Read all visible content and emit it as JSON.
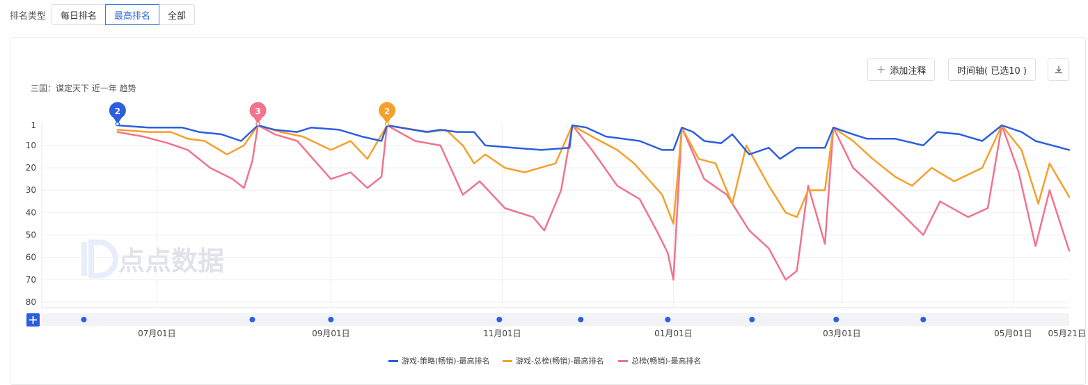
{
  "toolbar": {
    "label": "排名类型",
    "options": [
      "每日排名",
      "最高排名",
      "全部"
    ],
    "active": "最高排名"
  },
  "actions": {
    "add_note": "添加注释",
    "timeline": "时间轴( 已选10 )"
  },
  "watermark": "点点数据",
  "colors": {
    "blue": "#2b5fe0",
    "orange": "#f5a02a",
    "pink": "#f2738b"
  },
  "chart_data": {
    "type": "line",
    "title": "三国：谋定天下 近一年 趋势",
    "ylim": [
      1,
      80
    ],
    "y_inverted": true,
    "yticks": [
      1,
      10,
      20,
      30,
      40,
      50,
      60,
      70,
      80
    ],
    "xlim": [
      "2023-05-21",
      "2024-05-21"
    ],
    "xticks": [
      {
        "date": "2023-07-01",
        "label": "07月01日"
      },
      {
        "date": "2023-09-01",
        "label": "09月01日"
      },
      {
        "date": "2023-11-01",
        "label": "11月01日"
      },
      {
        "date": "2024-01-01",
        "label": "01月01日"
      },
      {
        "date": "2024-03-01",
        "label": "03月01日"
      },
      {
        "date": "2024-05-01",
        "label": "05月01日"
      },
      {
        "date": "2024-05-21",
        "label": "05月21日"
      }
    ],
    "legend_position": "bottom",
    "timeline_dots": [
      "2023-06-05",
      "2023-08-04",
      "2023-09-01",
      "2023-10-31",
      "2023-11-29",
      "2023-12-30",
      "2024-01-29",
      "2024-02-28",
      "2024-03-30"
    ],
    "markers": [
      {
        "date": "2023-06-17",
        "label": "2",
        "color": "#2b5fe0",
        "value": 1
      },
      {
        "date": "2023-08-06",
        "label": "3",
        "color": "#f2738b",
        "value": 1
      },
      {
        "date": "2023-09-21",
        "label": "2",
        "color": "#f5a02a",
        "value": 1
      }
    ],
    "series": [
      {
        "name": "游戏-策略(畅销)-最高排名",
        "color": "#2b5fe0",
        "points": [
          [
            "2023-06-17",
            1
          ],
          [
            "2023-06-28",
            2
          ],
          [
            "2023-07-10",
            2
          ],
          [
            "2023-07-16",
            4
          ],
          [
            "2023-07-24",
            5
          ],
          [
            "2023-07-31",
            8
          ],
          [
            "2023-08-06",
            1
          ],
          [
            "2023-08-12",
            3
          ],
          [
            "2023-08-20",
            4
          ],
          [
            "2023-08-25",
            2
          ],
          [
            "2023-09-04",
            3
          ],
          [
            "2023-09-12",
            6
          ],
          [
            "2023-09-19",
            8
          ],
          [
            "2023-09-21",
            1
          ],
          [
            "2023-10-05",
            4
          ],
          [
            "2023-10-10",
            3
          ],
          [
            "2023-10-16",
            4
          ],
          [
            "2023-10-22",
            4
          ],
          [
            "2023-10-26",
            10
          ],
          [
            "2023-11-05",
            11
          ],
          [
            "2023-11-15",
            12
          ],
          [
            "2023-11-25",
            11
          ],
          [
            "2023-11-26",
            1
          ],
          [
            "2023-12-01",
            2
          ],
          [
            "2023-12-08",
            6
          ],
          [
            "2023-12-20",
            8
          ],
          [
            "2023-12-28",
            12
          ],
          [
            "2024-01-01",
            12
          ],
          [
            "2024-01-04",
            2
          ],
          [
            "2024-01-08",
            4
          ],
          [
            "2024-01-12",
            8
          ],
          [
            "2024-01-18",
            9
          ],
          [
            "2024-01-22",
            5
          ],
          [
            "2024-01-28",
            14
          ],
          [
            "2024-02-04",
            11
          ],
          [
            "2024-02-08",
            16
          ],
          [
            "2024-02-14",
            11
          ],
          [
            "2024-02-24",
            11
          ],
          [
            "2024-02-27",
            2
          ],
          [
            "2024-03-05",
            5
          ],
          [
            "2024-03-10",
            7
          ],
          [
            "2024-03-20",
            7
          ],
          [
            "2024-03-30",
            10
          ],
          [
            "2024-04-04",
            4
          ],
          [
            "2024-04-12",
            5
          ],
          [
            "2024-04-20",
            8
          ],
          [
            "2024-04-27",
            1
          ],
          [
            "2024-05-04",
            4
          ],
          [
            "2024-05-09",
            8
          ],
          [
            "2024-05-15",
            10
          ],
          [
            "2024-05-21",
            12
          ]
        ]
      },
      {
        "name": "游戏-总榜(畅销)-最高排名",
        "color": "#f5a02a",
        "points": [
          [
            "2023-06-17",
            3
          ],
          [
            "2023-06-28",
            4
          ],
          [
            "2023-07-06",
            4
          ],
          [
            "2023-07-12",
            7
          ],
          [
            "2023-07-18",
            8
          ],
          [
            "2023-07-26",
            14
          ],
          [
            "2023-08-01",
            10
          ],
          [
            "2023-08-06",
            1
          ],
          [
            "2023-08-14",
            4
          ],
          [
            "2023-08-22",
            6
          ],
          [
            "2023-09-01",
            12
          ],
          [
            "2023-09-08",
            8
          ],
          [
            "2023-09-14",
            16
          ],
          [
            "2023-09-21",
            1
          ],
          [
            "2023-10-06",
            4
          ],
          [
            "2023-10-12",
            3
          ],
          [
            "2023-10-18",
            10
          ],
          [
            "2023-10-22",
            18
          ],
          [
            "2023-10-26",
            14
          ],
          [
            "2023-11-02",
            20
          ],
          [
            "2023-11-09",
            22
          ],
          [
            "2023-11-20",
            18
          ],
          [
            "2023-11-26",
            1
          ],
          [
            "2023-12-03",
            6
          ],
          [
            "2023-12-12",
            12
          ],
          [
            "2023-12-18",
            18
          ],
          [
            "2023-12-28",
            32
          ],
          [
            "2024-01-01",
            45
          ],
          [
            "2024-01-04",
            2
          ],
          [
            "2024-01-10",
            16
          ],
          [
            "2024-01-16",
            18
          ],
          [
            "2024-01-22",
            36
          ],
          [
            "2024-01-27",
            10
          ],
          [
            "2024-02-04",
            28
          ],
          [
            "2024-02-10",
            40
          ],
          [
            "2024-02-14",
            42
          ],
          [
            "2024-02-18",
            30
          ],
          [
            "2024-02-24",
            30
          ],
          [
            "2024-02-27",
            2
          ],
          [
            "2024-03-05",
            8
          ],
          [
            "2024-03-12",
            16
          ],
          [
            "2024-03-20",
            24
          ],
          [
            "2024-03-26",
            28
          ],
          [
            "2024-04-02",
            20
          ],
          [
            "2024-04-10",
            26
          ],
          [
            "2024-04-20",
            20
          ],
          [
            "2024-04-27",
            1
          ],
          [
            "2024-05-04",
            12
          ],
          [
            "2024-05-10",
            36
          ],
          [
            "2024-05-14",
            18
          ],
          [
            "2024-05-21",
            33
          ]
        ]
      },
      {
        "name": "总榜(畅销)-最高排名",
        "color": "#f2738b",
        "points": [
          [
            "2023-06-17",
            4
          ],
          [
            "2023-06-26",
            6
          ],
          [
            "2023-07-05",
            9
          ],
          [
            "2023-07-12",
            12
          ],
          [
            "2023-07-20",
            20
          ],
          [
            "2023-07-28",
            25
          ],
          [
            "2023-08-01",
            29
          ],
          [
            "2023-08-04",
            17
          ],
          [
            "2023-08-06",
            1
          ],
          [
            "2023-08-12",
            5
          ],
          [
            "2023-08-20",
            8
          ],
          [
            "2023-09-01",
            25
          ],
          [
            "2023-09-08",
            22
          ],
          [
            "2023-09-14",
            29
          ],
          [
            "2023-09-19",
            24
          ],
          [
            "2023-09-21",
            1
          ],
          [
            "2023-10-01",
            8
          ],
          [
            "2023-10-10",
            10
          ],
          [
            "2023-10-18",
            32
          ],
          [
            "2023-10-24",
            26
          ],
          [
            "2023-11-02",
            38
          ],
          [
            "2023-11-12",
            42
          ],
          [
            "2023-11-16",
            48
          ],
          [
            "2023-11-22",
            30
          ],
          [
            "2023-11-26",
            1
          ],
          [
            "2023-12-03",
            12
          ],
          [
            "2023-12-12",
            28
          ],
          [
            "2023-12-20",
            34
          ],
          [
            "2023-12-26",
            48
          ],
          [
            "2023-12-30",
            58
          ],
          [
            "2024-01-01",
            70
          ],
          [
            "2024-01-04",
            2
          ],
          [
            "2024-01-12",
            25
          ],
          [
            "2024-01-20",
            32
          ],
          [
            "2024-01-28",
            48
          ],
          [
            "2024-02-04",
            56
          ],
          [
            "2024-02-10",
            70
          ],
          [
            "2024-02-14",
            66
          ],
          [
            "2024-02-18",
            28
          ],
          [
            "2024-02-24",
            54
          ],
          [
            "2024-02-27",
            2
          ],
          [
            "2024-03-05",
            20
          ],
          [
            "2024-03-12",
            28
          ],
          [
            "2024-03-22",
            40
          ],
          [
            "2024-03-30",
            50
          ],
          [
            "2024-04-05",
            35
          ],
          [
            "2024-04-15",
            42
          ],
          [
            "2024-04-22",
            38
          ],
          [
            "2024-04-27",
            1
          ],
          [
            "2024-05-03",
            22
          ],
          [
            "2024-05-09",
            55
          ],
          [
            "2024-05-14",
            30
          ],
          [
            "2024-05-21",
            57
          ]
        ]
      }
    ]
  }
}
